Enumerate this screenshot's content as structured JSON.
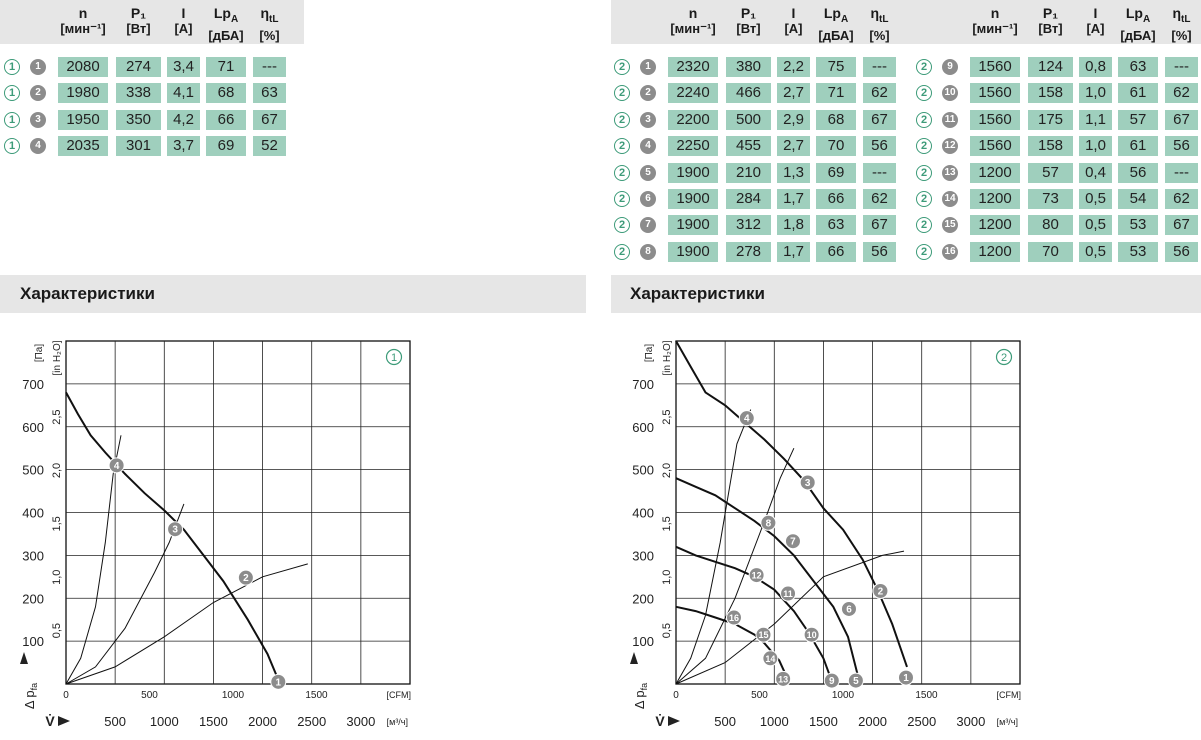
{
  "table_left": {
    "headers": [
      {
        "sym": "n",
        "unit": "[мин⁻¹]"
      },
      {
        "sym": "P₁",
        "unit": "[Вт]"
      },
      {
        "sym": "I",
        "unit": "[А]"
      },
      {
        "sym": "Lp",
        "sub": "A",
        "unit": "[дБА]"
      },
      {
        "sym": "η",
        "sub": "tL",
        "unit": "[%]"
      }
    ],
    "rows": [
      {
        "group": "1",
        "point": "1",
        "n": "2080",
        "p1": "274",
        "i": "3,4",
        "lpa": "71",
        "eta": "---"
      },
      {
        "group": "1",
        "point": "2",
        "n": "1980",
        "p1": "338",
        "i": "4,1",
        "lpa": "68",
        "eta": "63"
      },
      {
        "group": "1",
        "point": "3",
        "n": "1950",
        "p1": "350",
        "i": "4,2",
        "lpa": "66",
        "eta": "67"
      },
      {
        "group": "1",
        "point": "4",
        "n": "2035",
        "p1": "301",
        "i": "3,7",
        "lpa": "69",
        "eta": "52"
      }
    ]
  },
  "table_right_a": {
    "rows": [
      {
        "group": "2",
        "point": "1",
        "n": "2320",
        "p1": "380",
        "i": "2,2",
        "lpa": "75",
        "eta": "---"
      },
      {
        "group": "2",
        "point": "2",
        "n": "2240",
        "p1": "466",
        "i": "2,7",
        "lpa": "71",
        "eta": "62"
      },
      {
        "group": "2",
        "point": "3",
        "n": "2200",
        "p1": "500",
        "i": "2,9",
        "lpa": "68",
        "eta": "67"
      },
      {
        "group": "2",
        "point": "4",
        "n": "2250",
        "p1": "455",
        "i": "2,7",
        "lpa": "70",
        "eta": "56"
      },
      {
        "group": "2",
        "point": "5",
        "n": "1900",
        "p1": "210",
        "i": "1,3",
        "lpa": "69",
        "eta": "---"
      },
      {
        "group": "2",
        "point": "6",
        "n": "1900",
        "p1": "284",
        "i": "1,7",
        "lpa": "66",
        "eta": "62"
      },
      {
        "group": "2",
        "point": "7",
        "n": "1900",
        "p1": "312",
        "i": "1,8",
        "lpa": "63",
        "eta": "67"
      },
      {
        "group": "2",
        "point": "8",
        "n": "1900",
        "p1": "278",
        "i": "1,7",
        "lpa": "66",
        "eta": "56"
      }
    ]
  },
  "table_right_b": {
    "rows": [
      {
        "group": "2",
        "point": "9",
        "n": "1560",
        "p1": "124",
        "i": "0,8",
        "lpa": "63",
        "eta": "---"
      },
      {
        "group": "2",
        "point": "10",
        "n": "1560",
        "p1": "158",
        "i": "1,0",
        "lpa": "61",
        "eta": "62"
      },
      {
        "group": "2",
        "point": "11",
        "n": "1560",
        "p1": "175",
        "i": "1,1",
        "lpa": "57",
        "eta": "67"
      },
      {
        "group": "2",
        "point": "12",
        "n": "1560",
        "p1": "158",
        "i": "1,0",
        "lpa": "61",
        "eta": "56"
      },
      {
        "group": "2",
        "point": "13",
        "n": "1200",
        "p1": "57",
        "i": "0,4",
        "lpa": "56",
        "eta": "---"
      },
      {
        "group": "2",
        "point": "14",
        "n": "1200",
        "p1": "73",
        "i": "0,5",
        "lpa": "54",
        "eta": "62"
      },
      {
        "group": "2",
        "point": "15",
        "n": "1200",
        "p1": "80",
        "i": "0,5",
        "lpa": "53",
        "eta": "67"
      },
      {
        "group": "2",
        "point": "16",
        "n": "1200",
        "p1": "70",
        "i": "0,5",
        "lpa": "53",
        "eta": "56"
      }
    ]
  },
  "section_title_left": "Характеристики",
  "section_title_right": "Характеристики",
  "colors": {
    "cell": "#9fcfbd",
    "band": "#e6e6e6",
    "group_marker": "#3d9b79",
    "point_marker": "#8c8c8c"
  },
  "chart_data": [
    {
      "type": "line",
      "id": "1",
      "marker": "1",
      "xlabel": "[м³/ч]",
      "x2label": "[CFM]",
      "ylabel": "[Па]",
      "y2label": "[in H₂O]",
      "y_axis_symbol": "Δ p",
      "y_axis_subscript": "fa",
      "x_axis_symbol": "V̇",
      "xlim": [
        0,
        3500
      ],
      "ylim": [
        0,
        800
      ],
      "x_ticks": [
        "500",
        "1000",
        "1500",
        "2000",
        "2500",
        "3000"
      ],
      "y_ticks": [
        "100",
        "200",
        "300",
        "400",
        "500",
        "600",
        "700"
      ],
      "cfm_ticks": [
        "0",
        "500",
        "1000",
        "1500"
      ],
      "inh2o_ticks": [
        "0,5",
        "1,0",
        "1,5",
        "2,0",
        "2,5"
      ],
      "series": [
        {
          "points": [
            [
              0,
              680
            ],
            [
              120,
              630
            ],
            [
              250,
              580
            ],
            [
              400,
              540
            ],
            [
              600,
              490
            ],
            [
              800,
              445
            ],
            [
              1000,
              405
            ],
            [
              1200,
              360
            ],
            [
              1400,
              300
            ],
            [
              1600,
              240
            ],
            [
              1850,
              150
            ],
            [
              2050,
              70
            ],
            [
              2160,
              10
            ]
          ]
        }
      ],
      "system_lines": [
        {
          "points": [
            [
              0,
              0
            ],
            [
              150,
              60
            ],
            [
              300,
              180
            ],
            [
              400,
              330
            ],
            [
              480,
              490
            ],
            [
              560,
              580
            ]
          ]
        },
        {
          "points": [
            [
              0,
              0
            ],
            [
              300,
              40
            ],
            [
              600,
              130
            ],
            [
              900,
              260
            ],
            [
              1050,
              330
            ],
            [
              1200,
              420
            ]
          ]
        },
        {
          "points": [
            [
              0,
              0
            ],
            [
              500,
              40
            ],
            [
              1000,
              110
            ],
            [
              1500,
              190
            ],
            [
              2000,
              250
            ],
            [
              2460,
              280
            ]
          ]
        }
      ],
      "markers": [
        {
          "label": "1",
          "x": 2160,
          "y": 5
        },
        {
          "label": "2",
          "x": 1830,
          "y": 248
        },
        {
          "label": "3",
          "x": 1110,
          "y": 361
        },
        {
          "label": "4",
          "x": 515,
          "y": 510
        }
      ],
      "grid": true
    },
    {
      "type": "line",
      "id": "2",
      "marker": "2",
      "xlabel": "[м³/ч]",
      "x2label": "[CFM]",
      "ylabel": "[Па]",
      "y2label": "[in H₂O]",
      "y_axis_symbol": "Δ p",
      "y_axis_subscript": "fa",
      "x_axis_symbol": "V̇",
      "xlim": [
        0,
        3500
      ],
      "ylim": [
        0,
        800
      ],
      "x_ticks": [
        "500",
        "1000",
        "1500",
        "2000",
        "2500",
        "3000"
      ],
      "y_ticks": [
        "100",
        "200",
        "300",
        "400",
        "500",
        "600",
        "700"
      ],
      "cfm_ticks": [
        "0",
        "500",
        "1000",
        "1500"
      ],
      "inh2o_ticks": [
        "0,5",
        "1,0",
        "1,5",
        "2,0",
        "2,5"
      ],
      "series": [
        {
          "points": [
            [
              0,
              800
            ],
            [
              150,
              740
            ],
            [
              300,
              680
            ],
            [
              500,
              650
            ],
            [
              700,
              610
            ],
            [
              900,
              570
            ],
            [
              1100,
              525
            ],
            [
              1300,
              475
            ],
            [
              1500,
              410
            ],
            [
              1700,
              360
            ],
            [
              1900,
              290
            ],
            [
              2050,
              220
            ],
            [
              2200,
              140
            ],
            [
              2350,
              40
            ]
          ]
        },
        {
          "points": [
            [
              0,
              480
            ],
            [
              200,
              460
            ],
            [
              400,
              440
            ],
            [
              600,
              410
            ],
            [
              800,
              380
            ],
            [
              1000,
              345
            ],
            [
              1200,
              300
            ],
            [
              1400,
              240
            ],
            [
              1600,
              180
            ],
            [
              1750,
              110
            ],
            [
              1850,
              20
            ]
          ]
        },
        {
          "points": [
            [
              0,
              320
            ],
            [
              200,
              300
            ],
            [
              400,
              285
            ],
            [
              600,
              270
            ],
            [
              800,
              250
            ],
            [
              1000,
              220
            ],
            [
              1200,
              170
            ],
            [
              1350,
              120
            ],
            [
              1500,
              60
            ],
            [
              1580,
              10
            ]
          ]
        },
        {
          "points": [
            [
              0,
              180
            ],
            [
              200,
              170
            ],
            [
              400,
              155
            ],
            [
              600,
              140
            ],
            [
              800,
              115
            ],
            [
              900,
              95
            ],
            [
              1050,
              55
            ],
            [
              1140,
              10
            ]
          ]
        }
      ],
      "system_lines": [
        {
          "points": [
            [
              0,
              0
            ],
            [
              150,
              60
            ],
            [
              300,
              160
            ],
            [
              450,
              330
            ],
            [
              620,
              560
            ],
            [
              760,
              640
            ]
          ]
        },
        {
          "points": [
            [
              0,
              0
            ],
            [
              300,
              60
            ],
            [
              600,
              200
            ],
            [
              900,
              380
            ],
            [
              1060,
              480
            ],
            [
              1200,
              550
            ]
          ]
        },
        {
          "points": [
            [
              0,
              0
            ],
            [
              500,
              50
            ],
            [
              1000,
              140
            ],
            [
              1500,
              250
            ],
            [
              2100,
              300
            ],
            [
              2320,
              310
            ]
          ]
        }
      ],
      "markers": [
        {
          "label": "1",
          "x": 2340,
          "y": 15
        },
        {
          "label": "2",
          "x": 2080,
          "y": 217
        },
        {
          "label": "3",
          "x": 1340,
          "y": 470
        },
        {
          "label": "4",
          "x": 720,
          "y": 620
        },
        {
          "label": "5",
          "x": 1830,
          "y": 8
        },
        {
          "label": "6",
          "x": 1760,
          "y": 175
        },
        {
          "label": "7",
          "x": 1190,
          "y": 333
        },
        {
          "label": "8",
          "x": 940,
          "y": 376
        },
        {
          "label": "9",
          "x": 1585,
          "y": 8
        },
        {
          "label": "10",
          "x": 1380,
          "y": 115
        },
        {
          "label": "11",
          "x": 1140,
          "y": 211
        },
        {
          "label": "12",
          "x": 820,
          "y": 254
        },
        {
          "label": "13",
          "x": 1090,
          "y": 12
        },
        {
          "label": "14",
          "x": 960,
          "y": 60
        },
        {
          "label": "15",
          "x": 890,
          "y": 115
        },
        {
          "label": "16",
          "x": 590,
          "y": 155
        }
      ],
      "grid": true
    }
  ]
}
